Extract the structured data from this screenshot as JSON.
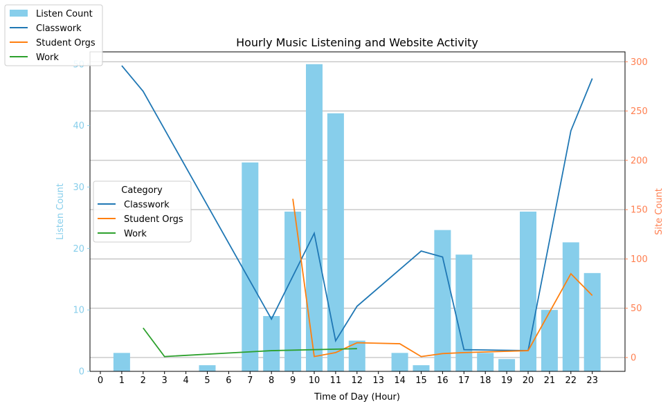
{
  "chart_data": {
    "type": "bar",
    "title": "Hourly Music Listening and Website Activity",
    "xlabel": "Time of Day (Hour)",
    "ylabel": "Listen Count",
    "y2label": "Site Count",
    "x": [
      0,
      1,
      2,
      3,
      4,
      5,
      6,
      7,
      8,
      9,
      10,
      11,
      12,
      13,
      14,
      15,
      16,
      17,
      18,
      19,
      20,
      21,
      22,
      23
    ],
    "x_ticks": [
      "0",
      "1",
      "2",
      "3",
      "4",
      "5",
      "6",
      "7",
      "8",
      "9",
      "10",
      "11",
      "12",
      "13",
      "14",
      "15",
      "16",
      "17",
      "18",
      "19",
      "20",
      "21",
      "22",
      "23"
    ],
    "ylim": [
      0,
      52
    ],
    "y_ticks": [
      0,
      10,
      20,
      30,
      40,
      50
    ],
    "y2lim": [
      -14,
      310
    ],
    "y2_ticks": [
      0,
      50,
      100,
      150,
      200,
      250,
      300
    ],
    "grid": "horizontal, right axis",
    "bars": {
      "name": "Listen Count",
      "color": "#87ceeb",
      "values": [
        0,
        3,
        0,
        0,
        0,
        1,
        0,
        34,
        9,
        26,
        50,
        42,
        5,
        0,
        3,
        1,
        23,
        19,
        3,
        2,
        26,
        10,
        21,
        16
      ]
    },
    "lines": [
      {
        "name": "Classwork",
        "color": "#1f77b4",
        "x": [
          1,
          2,
          8,
          10,
          11,
          12,
          15,
          16,
          17,
          20,
          22,
          23
        ],
        "values": [
          296,
          270,
          39,
          126,
          17,
          52,
          108,
          102,
          8,
          7,
          230,
          283
        ]
      },
      {
        "name": "Student Orgs",
        "color": "#ff7f0e",
        "x": [
          9,
          10,
          11,
          12,
          14,
          15,
          16,
          17,
          20,
          22,
          23
        ],
        "values": [
          161,
          1,
          5,
          15,
          14,
          1,
          4,
          5,
          7,
          85,
          63
        ]
      },
      {
        "name": "Work",
        "color": "#2ca02c",
        "x": [
          2,
          3,
          8,
          12
        ],
        "values": [
          30,
          1,
          7,
          9
        ]
      }
    ],
    "legend_top": {
      "placement": "upper-left",
      "entries": [
        "Listen Count",
        "Classwork",
        "Student Orgs",
        "Work"
      ]
    },
    "legend_mid": {
      "placement": "center-left",
      "title": "Category",
      "entries": [
        "Classwork",
        "Student Orgs",
        "Work"
      ]
    },
    "left_axis_color": "#87ceeb",
    "right_axis_color": "#ff7f50"
  }
}
